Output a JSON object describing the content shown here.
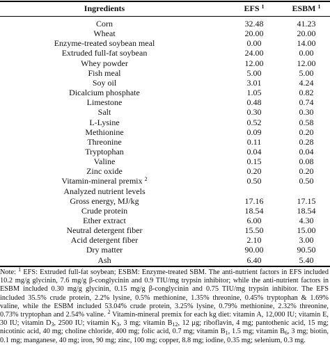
{
  "table": {
    "header": [
      {
        "text": "Ingredients"
      },
      {
        "text": "EFS",
        "sup": "1"
      },
      {
        "text": "ESBM",
        "sup": "1"
      }
    ],
    "rows": [
      {
        "name": "Corn",
        "efs": "32.48",
        "esbm": "41.23"
      },
      {
        "name": "Wheat",
        "efs": "20.00",
        "esbm": "20.00"
      },
      {
        "name": "Enzyme-treated soybean meal",
        "efs": "0.00",
        "esbm": "14.00"
      },
      {
        "name": "Extruded full-fat soybean",
        "efs": "24.00",
        "esbm": "0.00"
      },
      {
        "name": "Whey powder",
        "efs": "12.00",
        "esbm": "12.00"
      },
      {
        "name": "Fish meal",
        "efs": "5.00",
        "esbm": "5.00"
      },
      {
        "name": "Soy oil",
        "efs": "3.01",
        "esbm": "4.24"
      },
      {
        "name": "Dicalcium phosphate",
        "efs": "1.05",
        "esbm": "0.82"
      },
      {
        "name": "Limestone",
        "efs": "0.48",
        "esbm": "0.74"
      },
      {
        "name": "Salt",
        "efs": "0.30",
        "esbm": "0.30"
      },
      {
        "name": "L-Lysine",
        "efs": "0.52",
        "esbm": "0.58"
      },
      {
        "name": "Methionine",
        "efs": "0.09",
        "esbm": "0.20"
      },
      {
        "name": "Threonine",
        "efs": "0.11",
        "esbm": "0.28"
      },
      {
        "name": "Tryptophan",
        "efs": "0.04",
        "esbm": "0.04"
      },
      {
        "name": "Valine",
        "efs": "0.15",
        "esbm": "0.08"
      },
      {
        "name": "Zinc oxide",
        "efs": "0.20",
        "esbm": "0.20"
      },
      {
        "name": "Vitamin-mineral premix",
        "sup": "2",
        "efs": "0.50",
        "esbm": "0.50"
      },
      {
        "name": "Analyzed nutrient levels"
      },
      {
        "name": "Gross energy, MJ/kg",
        "efs": "17.16",
        "esbm": "17.15"
      },
      {
        "name": "Crude protein",
        "efs": "18.54",
        "esbm": "18.54"
      },
      {
        "name": "Ether extract",
        "efs": "6.00",
        "esbm": "4.30"
      },
      {
        "name": "Neutral detergent fiber",
        "efs": "15.50",
        "esbm": "15.00"
      },
      {
        "name": "Acid detergent fiber",
        "efs": "2.10",
        "esbm": "3.00"
      },
      {
        "name": "Dry matter",
        "efs": "90.00",
        "esbm": "90.50"
      },
      {
        "name": "Ash",
        "efs": "6.40",
        "esbm": "5.40"
      }
    ]
  },
  "note": [
    {
      "text": "Note: ",
      "style": "normal"
    },
    {
      "text": "1",
      "style": "sup"
    },
    {
      "text": " EFS: Extruded full-fat soybean; ESBM: Enzyme-treated SBM. The anti-nutrient factors in EFS included 10.2 mg/g glycinin, 7.6 mg/g β-conglycinin and 0.9 TIU/mg trypsin inhibitor; while the anti-nutrient factors in ESBM included 0.30 mg/g glycinin, 0.15 mg/g β-conglycinin and 0.75 TIU/mg trypsin inhibitor. The EFS included 35.5% crude protein, 2.2% lysine, 0.5% methionine, 1.35% threonine, 0.45% tryptophan & 1.69% valine, while the ESBM included 53.04% crude protein, 3.25% lysine, 0.79% methionine, 2.32% threonine, 0.73% tryptophan and 2.54% valine. ",
      "style": "normal"
    },
    {
      "text": "2",
      "style": "sup"
    },
    {
      "text": " Vitamin-mineral premix for each kg diet: vitamin A, 12,000 IU; vitamin E, 30 IU; vitamin D",
      "style": "normal"
    },
    {
      "text": "3",
      "style": "sub"
    },
    {
      "text": ", 2500 IU; vitamin K",
      "style": "normal"
    },
    {
      "text": "3",
      "style": "sub"
    },
    {
      "text": ", 3 mg; vitamin B",
      "style": "normal"
    },
    {
      "text": "12",
      "style": "sub"
    },
    {
      "text": ", 12 μg; riboflavin, 4 mg; pantothenic acid, 15 mg; nicotinic acid, 40 mg; choline chloride, 400 mg; folic acid, 0.7 mg; vitamin B",
      "style": "normal"
    },
    {
      "text": "1",
      "style": "sub"
    },
    {
      "text": ", 1.5 mg; vitamin B",
      "style": "normal"
    },
    {
      "text": "6",
      "style": "sub"
    },
    {
      "text": ", 3 mg; biotin, 0.1 mg; manganese, 40 mg; iron, 90 mg; zinc, 100 mg; copper, 8.8 mg; iodine, 0.35 mg; selenium, 0.3 mg.",
      "style": "normal"
    }
  ]
}
